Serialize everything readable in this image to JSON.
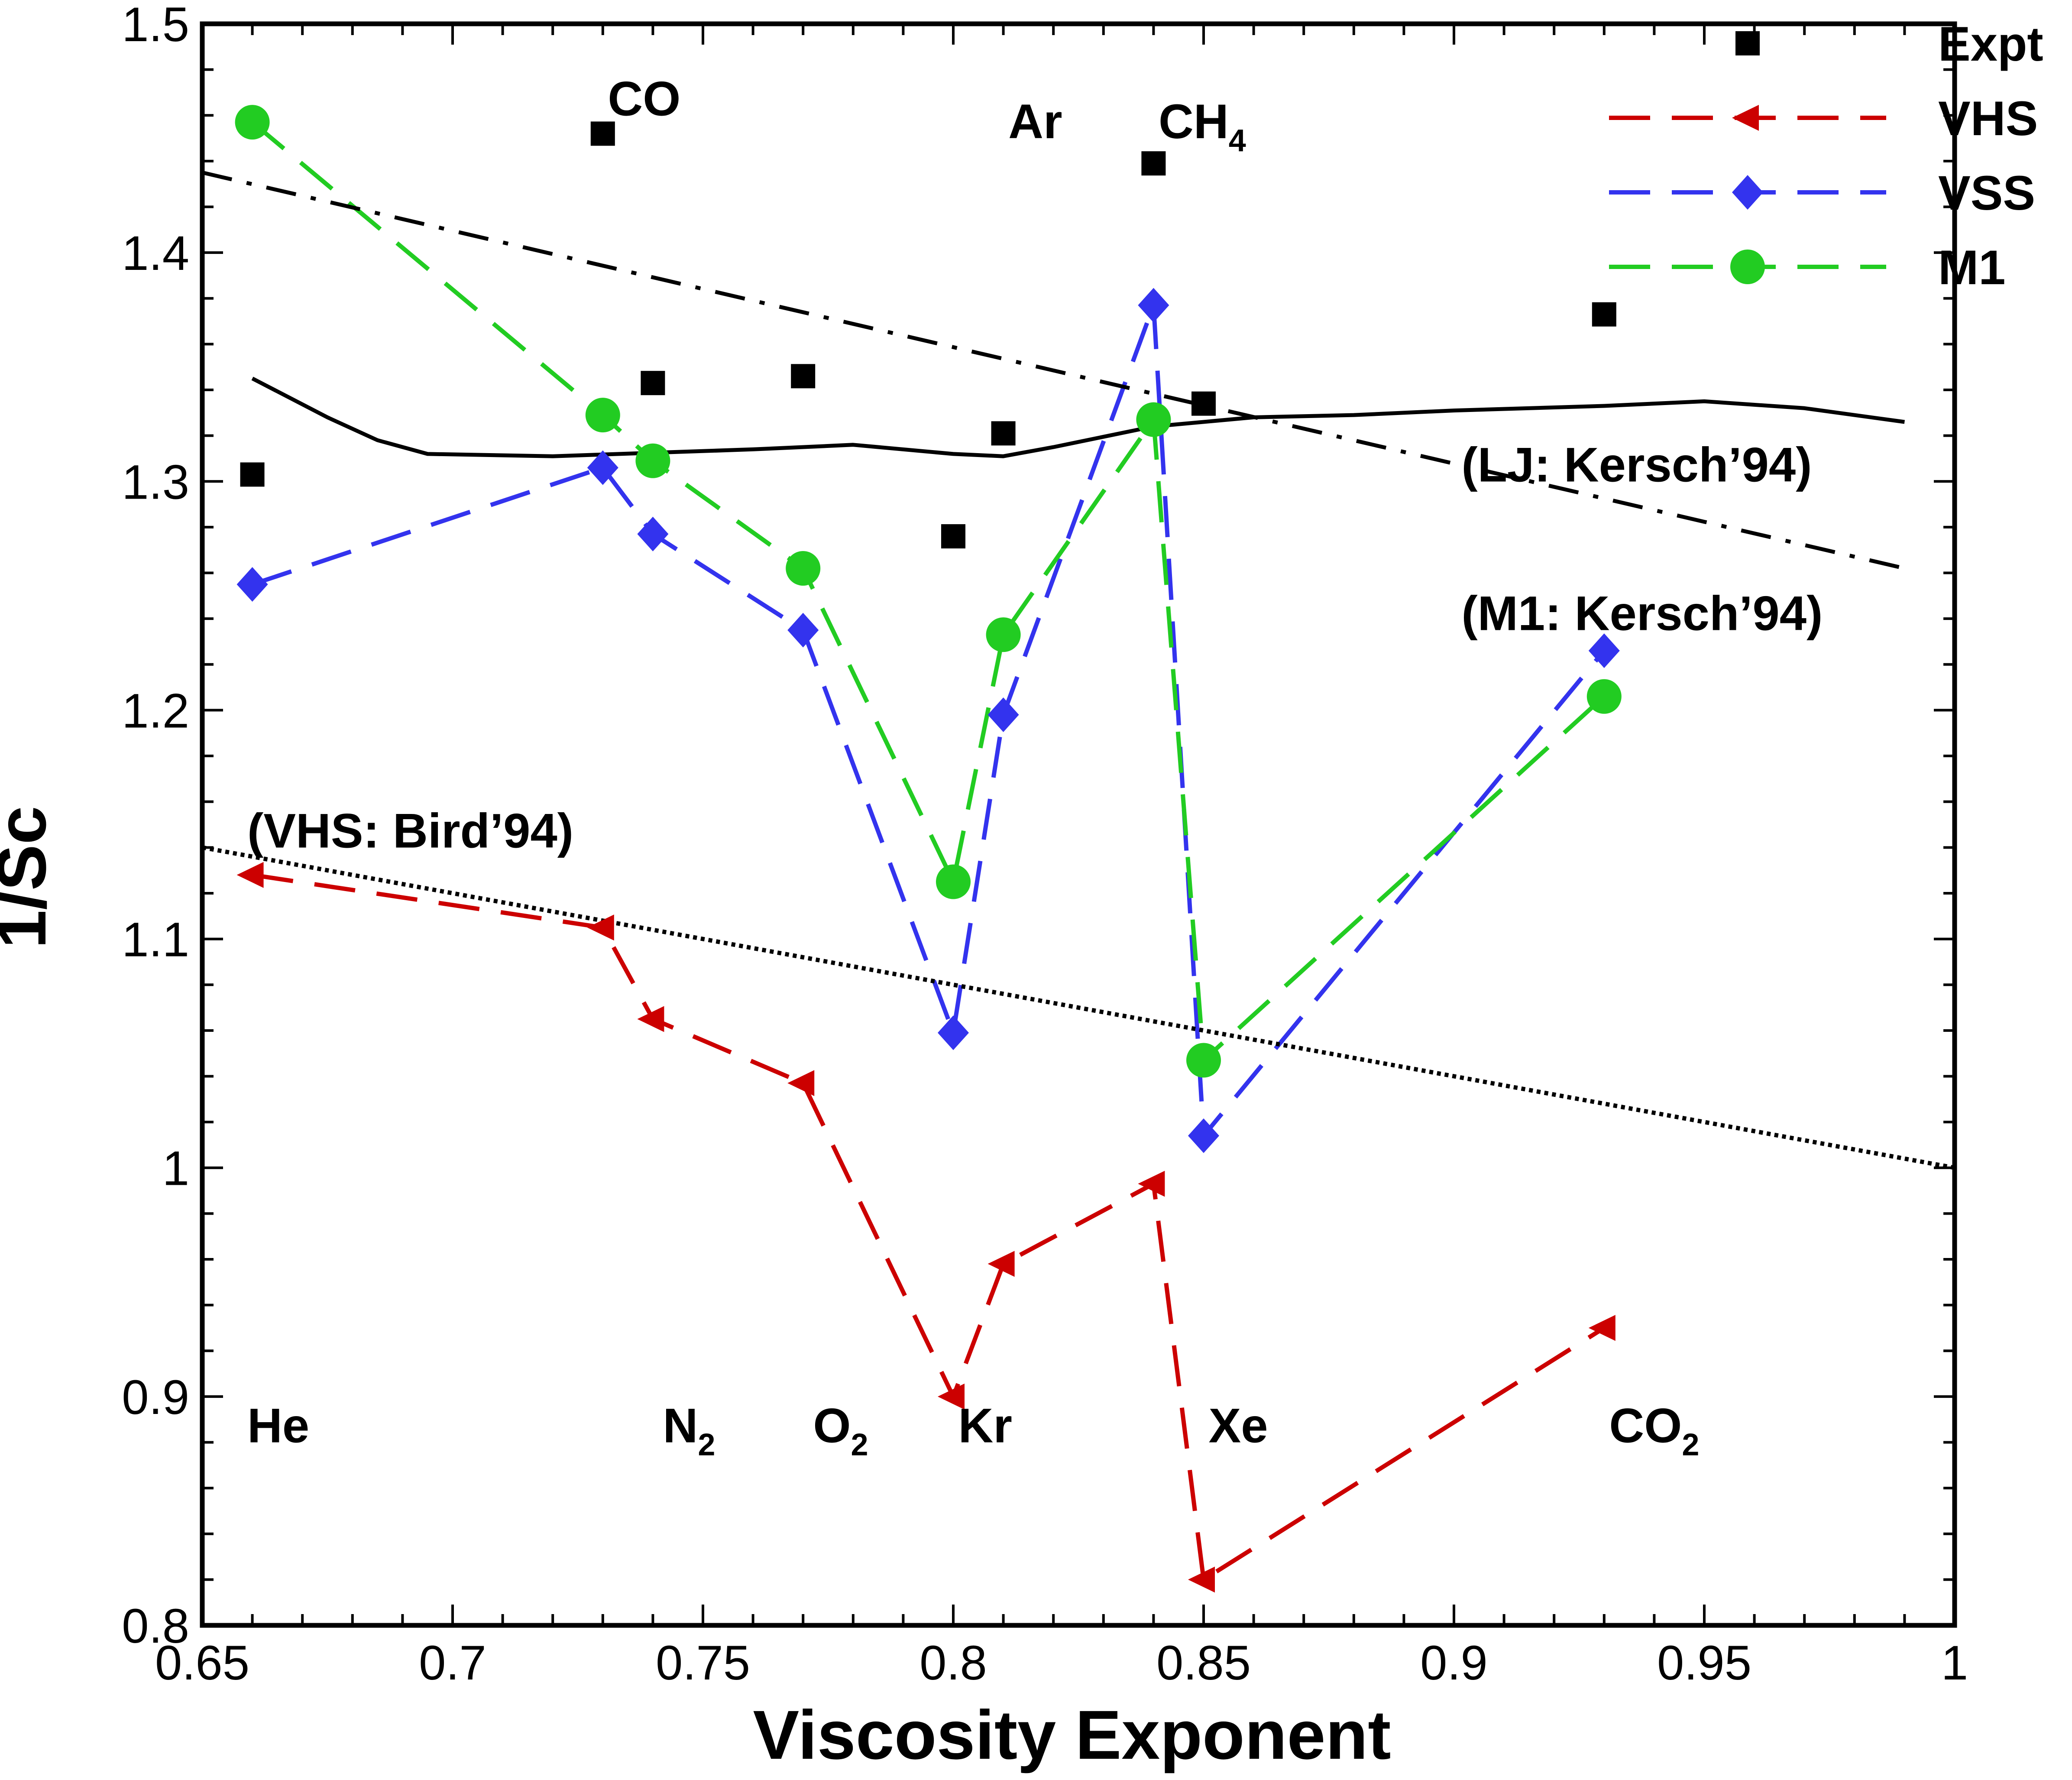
{
  "chart_data": {
    "type": "line",
    "title": "",
    "xlabel": "Viscosity Exponent",
    "ylabel": "1/Sc",
    "xlim": [
      0.65,
      1.0
    ],
    "ylim": [
      0.8,
      1.5
    ],
    "xticks": [
      0.65,
      0.7,
      0.75,
      0.8,
      0.85,
      0.9,
      0.95,
      1.0
    ],
    "xtick_labels": [
      "0.65",
      "0.7",
      "0.75",
      "0.8",
      "0.85",
      "0.9",
      "0.95",
      "1"
    ],
    "yticks": [
      0.8,
      0.9,
      1.0,
      1.1,
      1.2,
      1.3,
      1.4,
      1.5
    ],
    "ytick_labels": [
      "0.8",
      "0.9",
      "1",
      "1.1",
      "1.2",
      "1.3",
      "1.4",
      "1.5"
    ],
    "grid": false,
    "legend_position": "top-right",
    "series": [
      {
        "name": "Expt",
        "style": "markers",
        "marker": "square",
        "color": "#000000",
        "x": [
          0.66,
          0.73,
          0.74,
          0.77,
          0.8,
          0.81,
          0.84,
          0.85,
          0.93
        ],
        "y": [
          1.303,
          1.452,
          1.343,
          1.346,
          1.276,
          1.321,
          1.439,
          1.334,
          1.373
        ]
      },
      {
        "name": "VHS",
        "style": "dashed",
        "marker": "triangle-left",
        "color": "#cc0000",
        "x": [
          0.66,
          0.73,
          0.74,
          0.77,
          0.8,
          0.81,
          0.84,
          0.85,
          0.93
        ],
        "y": [
          1.128,
          1.105,
          1.065,
          1.037,
          0.9,
          0.958,
          0.993,
          0.82,
          0.93
        ]
      },
      {
        "name": "VSS",
        "style": "dashed",
        "marker": "diamond",
        "color": "#3333ee",
        "x": [
          0.66,
          0.73,
          0.74,
          0.77,
          0.8,
          0.81,
          0.84,
          0.85,
          0.93
        ],
        "y": [
          1.255,
          1.306,
          1.277,
          1.235,
          1.059,
          1.198,
          1.377,
          1.014,
          1.226
        ]
      },
      {
        "name": "M1",
        "style": "dashed",
        "marker": "circle",
        "color": "#22cc22",
        "x": [
          0.66,
          0.73,
          0.74,
          0.77,
          0.8,
          0.81,
          0.84,
          0.85,
          0.93
        ],
        "y": [
          1.457,
          1.329,
          1.309,
          1.262,
          1.125,
          1.233,
          1.327,
          1.047,
          1.206
        ]
      },
      {
        "name": "(LJ: Kersch'94)",
        "style": "solid",
        "color": "#000000",
        "x": [
          0.66,
          0.675,
          0.685,
          0.695,
          0.72,
          0.76,
          0.78,
          0.8,
          0.81,
          0.82,
          0.84,
          0.86,
          0.88,
          0.9,
          0.93,
          0.95,
          0.97,
          0.99
        ],
        "y": [
          1.345,
          1.328,
          1.318,
          1.312,
          1.311,
          1.314,
          1.316,
          1.312,
          1.311,
          1.315,
          1.324,
          1.328,
          1.329,
          1.331,
          1.333,
          1.335,
          1.332,
          1.326
        ]
      },
      {
        "name": "(M1: Kersch'94)",
        "style": "dash-dot",
        "color": "#000000",
        "x": [
          0.65,
          0.99
        ],
        "y": [
          1.435,
          1.262
        ]
      },
      {
        "name": "(VHS: Bird'94)",
        "style": "dotted",
        "color": "#000000",
        "x": [
          0.65,
          1.0
        ],
        "y": [
          1.14,
          1.0
        ]
      }
    ],
    "annotations": [
      {
        "text": "He",
        "x": 0.659,
        "y": 0.88
      },
      {
        "text": "N",
        "sub": "2",
        "x": 0.742,
        "y": 0.88
      },
      {
        "text": "O",
        "sub": "2",
        "x": 0.772,
        "y": 0.88
      },
      {
        "text": "Kr",
        "x": 0.801,
        "y": 0.88
      },
      {
        "text": "Xe",
        "x": 0.851,
        "y": 0.88
      },
      {
        "text": "CO",
        "sub": "2",
        "x": 0.931,
        "y": 0.88
      },
      {
        "text": "CO",
        "x": 0.731,
        "y": 1.46
      },
      {
        "text": "Ar",
        "x": 0.811,
        "y": 1.45
      },
      {
        "text": "CH",
        "sub": "4",
        "x": 0.841,
        "y": 1.45
      },
      {
        "text": "(LJ: Kersch’94)",
        "x": 0.9015,
        "y": 1.3
      },
      {
        "text": "(M1: Kersch’94)",
        "x": 0.9015,
        "y": 1.235
      },
      {
        "text": "(VHS: Bird’94)",
        "x": 0.659,
        "y": 1.14
      }
    ]
  }
}
